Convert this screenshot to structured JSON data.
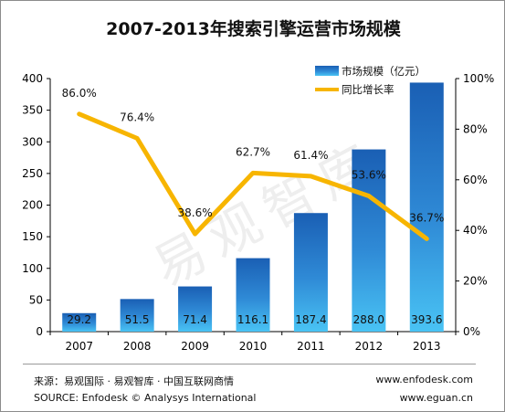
{
  "chart_data": {
    "type": "bar",
    "title": "2007-2013年搜索引擎运营市场规模",
    "categories": [
      "2007",
      "2008",
      "2009",
      "2010",
      "2011",
      "2012",
      "2013"
    ],
    "series": [
      {
        "name": "市场规模（亿元）",
        "type": "bar",
        "axis": "left",
        "values": [
          29.2,
          51.5,
          71.4,
          116.1,
          187.4,
          288.0,
          393.6
        ],
        "labels": [
          "29.2",
          "51.5",
          "71.4",
          "116.1",
          "187.4",
          "288.0",
          "393.6"
        ],
        "color": "#2a78c8"
      },
      {
        "name": "同比增长率",
        "type": "line",
        "axis": "right",
        "values": [
          86.0,
          76.4,
          38.6,
          62.7,
          61.4,
          53.6,
          36.7
        ],
        "labels": [
          "86.0%",
          "76.4%",
          "38.6%",
          "62.7%",
          "61.4%",
          "53.6%",
          "36.7%"
        ],
        "color": "#f7b500"
      }
    ],
    "y_left": {
      "range": [
        0,
        400
      ],
      "ticks": [
        "0",
        "50",
        "100",
        "150",
        "200",
        "250",
        "300",
        "350",
        "400"
      ]
    },
    "y_right": {
      "range": [
        0,
        100
      ],
      "ticks": [
        "0%",
        "20%",
        "40%",
        "60%",
        "80%",
        "100%"
      ]
    },
    "legend_position": "top-right",
    "grid": false
  },
  "footer": {
    "source_cn": "来源：易观国际 · 易观智库 · 中国互联网商情",
    "source_en": "SOURCE: Enfodesk © Analysys International",
    "site1": "www.enfodesk.com",
    "site2": "www.eguan.cn"
  },
  "watermark": "易观智库"
}
